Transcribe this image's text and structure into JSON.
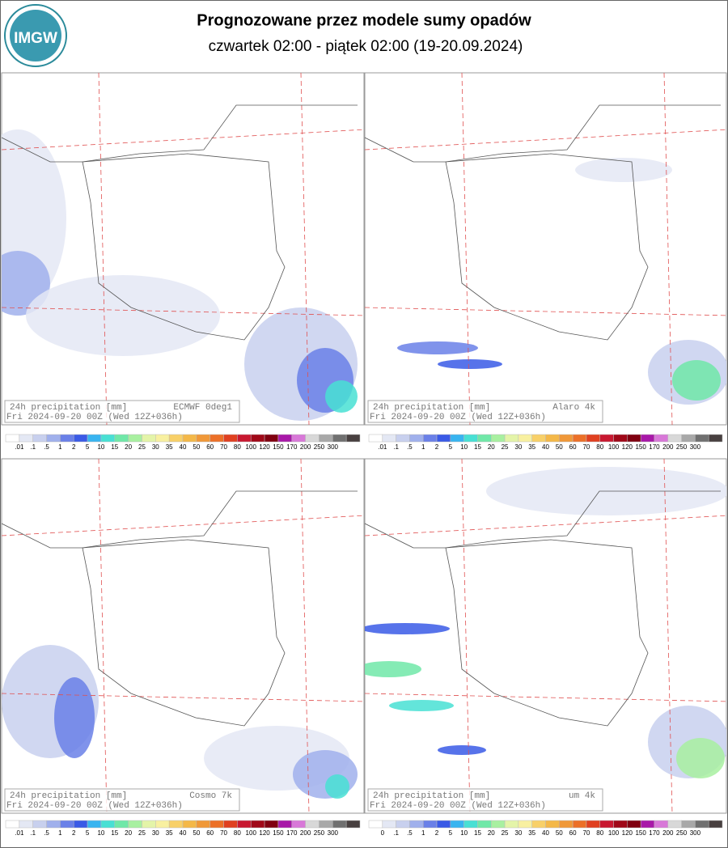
{
  "header": {
    "logo": "IMGW",
    "title": "Prognozowane przez modele sumy opadów",
    "subtitle": "czwartek 02:00 - piątek 02:00 (19-20.09.2024)"
  },
  "legend_colors": [
    "#ffffff",
    "#e4e8f4",
    "#c8d0ee",
    "#a0b0ec",
    "#6a80e8",
    "#3a5ae6",
    "#38b4f0",
    "#48e0d4",
    "#70e8a8",
    "#a8f0a0",
    "#e4f4a8",
    "#f8f0a0",
    "#f8d068",
    "#f4b848",
    "#f09838",
    "#ec7028",
    "#e04020",
    "#c81830",
    "#a00818",
    "#800010",
    "#a818a8",
    "#d878d8",
    "#d8d8d8",
    "#a8a8a8",
    "#707070",
    "#484040"
  ],
  "panels": [
    {
      "caption": "24h precipitation   [mm]",
      "model": "ECMWF 0deg1",
      "run": "Fri 2024-09-20 00Z (Wed 12Z+036h)",
      "legend_labels": [
        ".01",
        ".1",
        ".5",
        "1",
        "2",
        "5",
        "10",
        "15",
        "20",
        "25",
        "30",
        "35",
        "40",
        "50",
        "60",
        "70",
        "80",
        "100",
        "120",
        "150",
        "170",
        "200",
        "250",
        "300"
      ]
    },
    {
      "caption": "24h precipitation   [mm]",
      "model": "Alaro 4k",
      "run": "Fri 2024-09-20 00Z (Wed 12Z+036h)",
      "legend_labels": [
        ".01",
        ".1",
        ".5",
        "1",
        "2",
        "5",
        "10",
        "15",
        "20",
        "25",
        "30",
        "35",
        "40",
        "50",
        "60",
        "70",
        "80",
        "100",
        "120",
        "150",
        "170",
        "200",
        "250",
        "300"
      ]
    },
    {
      "caption": "24h precipitation   [mm]",
      "model": "Cosmo 7k",
      "run": "Fri 2024-09-20 00Z (Wed 12Z+036h)",
      "legend_labels": [
        ".01",
        ".1",
        ".5",
        "1",
        "2",
        "5",
        "10",
        "15",
        "20",
        "25",
        "30",
        "35",
        "40",
        "50",
        "60",
        "70",
        "80",
        "100",
        "120",
        "150",
        "170",
        "200",
        "250",
        "300"
      ]
    },
    {
      "caption": "24h precipitation   [mm]",
      "model": "um 4k",
      "run": "Fri 2024-09-20 00Z (Wed 12Z+036h)",
      "legend_labels": [
        "0",
        ".1",
        ".5",
        "1",
        "2",
        "5",
        "10",
        "15",
        "20",
        "25",
        "30",
        "35",
        "40",
        "50",
        "60",
        "70",
        "80",
        "100",
        "120",
        "150",
        "170",
        "200",
        "250",
        "300"
      ]
    }
  ]
}
